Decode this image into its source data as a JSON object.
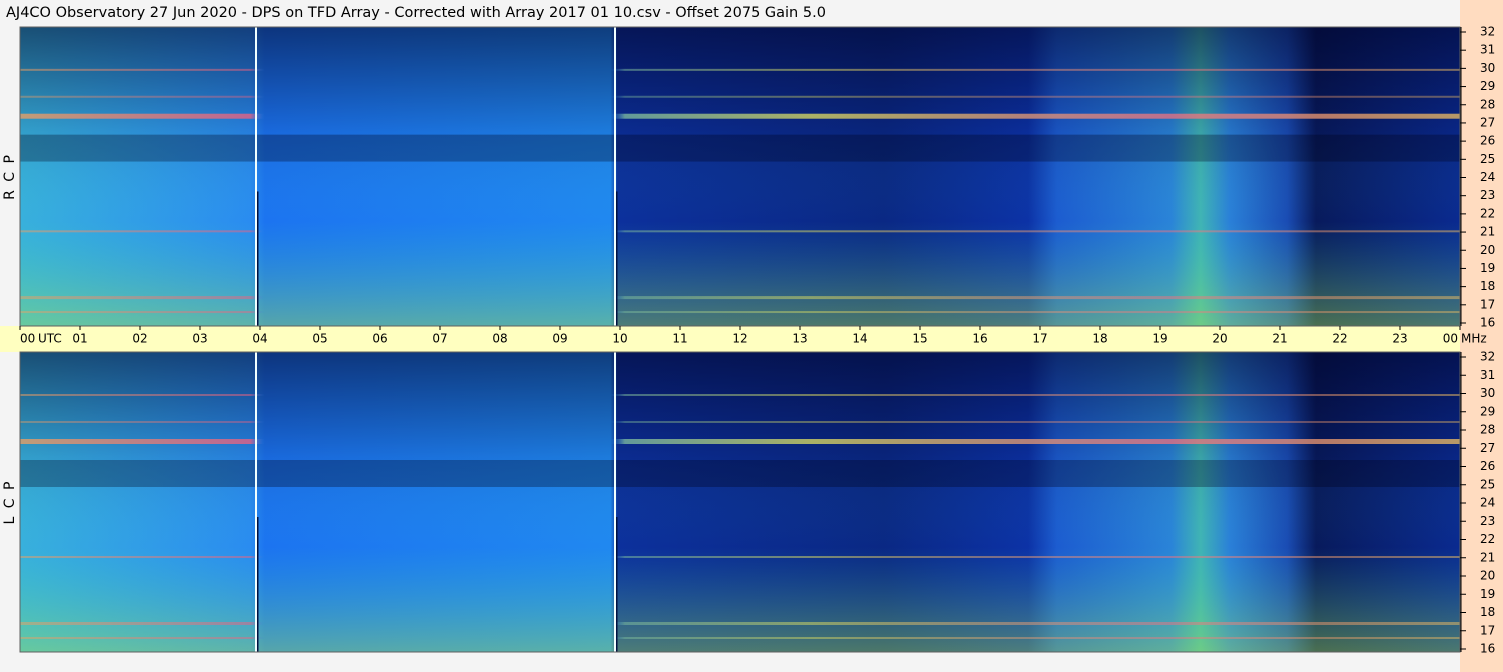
{
  "chart_data": {
    "type": "spectrogram",
    "title": "AJ4CO Observatory  27 Jun 2020  -  DPS on TFD Array  -  Corrected with Array 2017 01 10.csv  -  Offset 2075  Gain 5.0",
    "x_unit": "UTC",
    "y_unit": "MHz",
    "panels": [
      {
        "label": "R C P"
      },
      {
        "label": "L C P"
      }
    ],
    "xlim": [
      0,
      24
    ],
    "xticks": [
      {
        "value": 0,
        "label": "00"
      },
      {
        "value": 1,
        "label": "01"
      },
      {
        "value": 2,
        "label": "02"
      },
      {
        "value": 3,
        "label": "03"
      },
      {
        "value": 4,
        "label": "04"
      },
      {
        "value": 5,
        "label": "05"
      },
      {
        "value": 6,
        "label": "06"
      },
      {
        "value": 7,
        "label": "07"
      },
      {
        "value": 8,
        "label": "08"
      },
      {
        "value": 9,
        "label": "09"
      },
      10,
      11,
      12,
      13,
      14,
      15,
      16,
      17,
      18,
      19,
      20,
      21,
      22,
      23,
      {
        "value": 24,
        "label": "00"
      }
    ],
    "ylim": [
      16,
      32
    ],
    "yticks": [
      16,
      17,
      18,
      19,
      20,
      21,
      22,
      23,
      24,
      25,
      26,
      27,
      28,
      29,
      30,
      31,
      32
    ]
  }
}
